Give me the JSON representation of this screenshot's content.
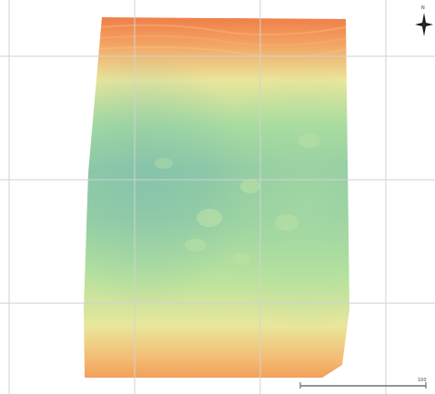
{
  "map": {
    "grid": "on",
    "colormap": "spectral",
    "surface": "elevation-raster",
    "gradient_stops": [
      {
        "offset": 0.0,
        "color": "#ef7a45"
      },
      {
        "offset": 0.08,
        "color": "#f3a262"
      },
      {
        "offset": 0.18,
        "color": "#e9e69b"
      },
      {
        "offset": 0.3,
        "color": "#a9dca0"
      },
      {
        "offset": 0.42,
        "color": "#8fc9a6"
      },
      {
        "offset": 0.55,
        "color": "#98d0a4"
      },
      {
        "offset": 0.7,
        "color": "#b7e29e"
      },
      {
        "offset": 0.84,
        "color": "#e8e69b"
      },
      {
        "offset": 0.93,
        "color": "#f4ba72"
      },
      {
        "offset": 1.0,
        "color": "#f0954f"
      }
    ],
    "grid_color": "#d2d2d2"
  },
  "north_arrow": {
    "icon": "north-arrow-icon",
    "label": "N"
  },
  "scale_bar": {
    "label": "100"
  }
}
